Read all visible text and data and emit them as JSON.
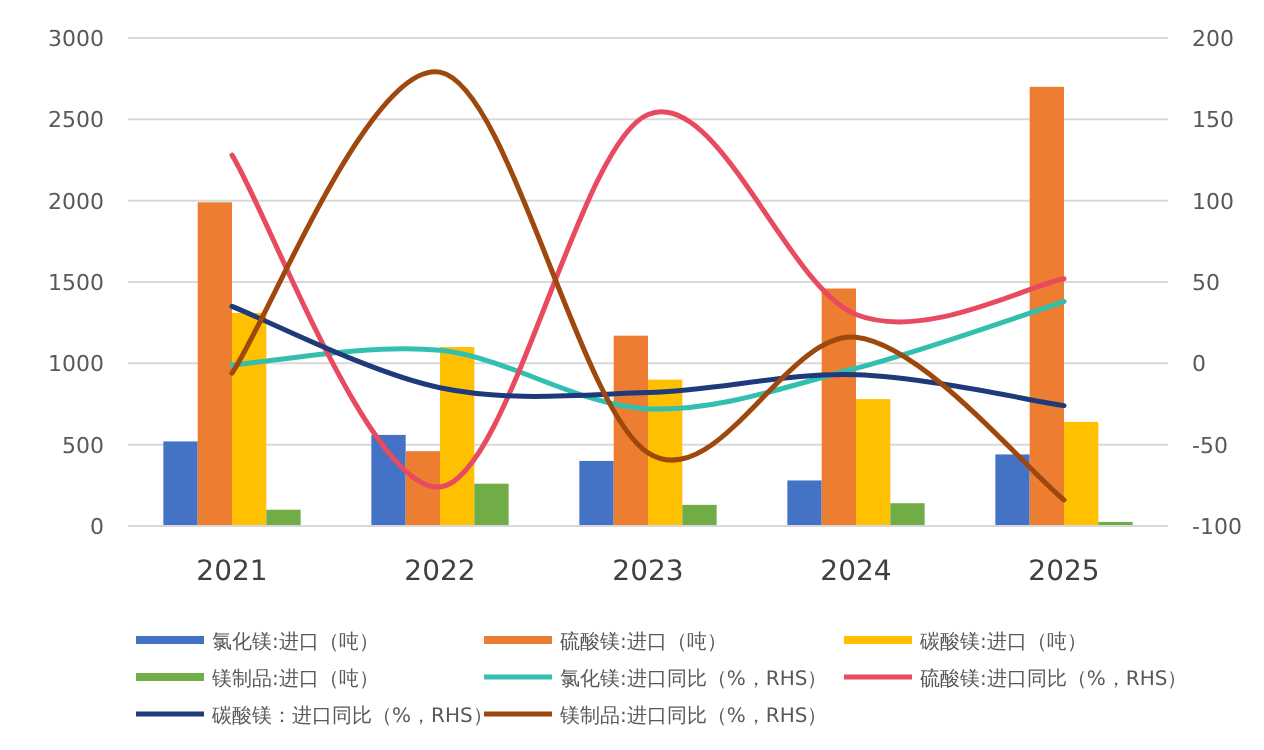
{
  "chart_data": {
    "type": "bar",
    "categories": [
      "2021",
      "2022",
      "2023",
      "2024",
      "2025"
    ],
    "series": [
      {
        "name": "氯化镁:进口（吨）",
        "color": "#4472c4",
        "values": [
          520,
          560,
          400,
          280,
          440
        ]
      },
      {
        "name": "硫酸镁:进口（吨）",
        "color": "#ed7d31",
        "values": [
          1990,
          460,
          1170,
          1460,
          2700
        ]
      },
      {
        "name": "碳酸镁:进口（吨）",
        "color": "#ffc000",
        "values": [
          1310,
          1100,
          900,
          780,
          640
        ]
      },
      {
        "name": "镁制品:进口（吨）",
        "color": "#70ad47",
        "values": [
          100,
          260,
          130,
          140,
          25
        ]
      },
      {
        "name": "氯化镁:进口同比（%，RHS）",
        "color": "#33bfb0",
        "type": "line",
        "axis": "y2",
        "values": [
          -1,
          8,
          -28,
          -3,
          38
        ]
      },
      {
        "name": "硫酸镁:进口同比（%，RHS）",
        "color": "#e84a5f",
        "type": "line",
        "axis": "y2",
        "values": [
          128,
          -76,
          153,
          30,
          52
        ]
      },
      {
        "name": "碳酸镁：进口同比（%，RHS）",
        "color": "#1f3a7a",
        "type": "line",
        "axis": "y2",
        "values": [
          35,
          -15,
          -18,
          -7,
          -26
        ]
      },
      {
        "name": "镁制品:进口同比（%，RHS）",
        "color": "#9e480e",
        "type": "line",
        "axis": "y2",
        "values": [
          -6,
          179,
          -55,
          16,
          -84
        ]
      }
    ],
    "ylim": [
      0,
      3000
    ],
    "yticks": [
      0,
      500,
      1000,
      1500,
      2000,
      2500,
      3000
    ],
    "y2lim": [
      -100,
      200
    ],
    "y2ticks": [
      -100,
      -50,
      0,
      50,
      100,
      150,
      200
    ],
    "grid": "y",
    "legend": "bottom"
  }
}
